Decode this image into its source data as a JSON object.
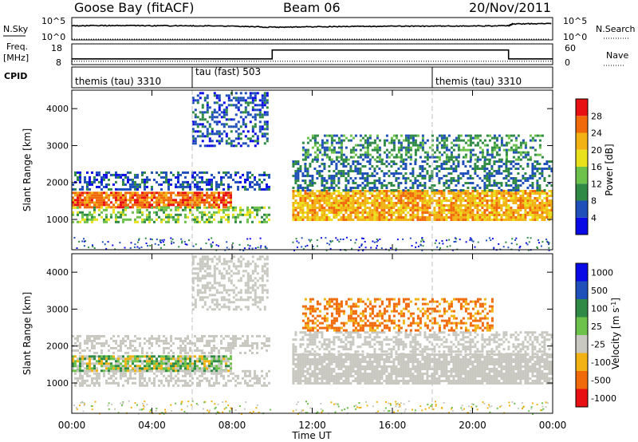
{
  "header": {
    "station": "Goose Bay (fitACF)",
    "beam": "Beam 06",
    "date": "20/Nov/2011"
  },
  "noise_panel": {
    "left_label": "N.Sky",
    "right_label": "N.Search",
    "tick_top": "10^5",
    "tick_bottom": "10^0",
    "rtick_top": "10^5",
    "rtick_bottom": "10^0"
  },
  "freq_panel": {
    "left_label_1": "Freq.",
    "left_label_2": "[MHz]",
    "right_label": "Nave",
    "left_ticks": [
      "18",
      "8"
    ],
    "right_ticks": [
      "60",
      "0"
    ]
  },
  "cpid_panel": {
    "label": "CPID",
    "modes": [
      {
        "name": "themis (tau) 3310",
        "start_hour": 0
      },
      {
        "name": "tau (fast) 503",
        "start_hour": 6
      },
      {
        "name": "themis (tau) 3310",
        "start_hour": 18
      }
    ]
  },
  "colors": {
    "power": [
      "#0a0ae6",
      "#1f4fb8",
      "#2f8a46",
      "#6cc24a",
      "#e8e11c",
      "#f2b213",
      "#f06a0c",
      "#e81010"
    ],
    "velocity": [
      "#0a0ae6",
      "#1f4fb8",
      "#2f8a46",
      "#6cc24a",
      "#c8c8c0",
      "#f2b213",
      "#f06a0c",
      "#e81010"
    ],
    "ground_scatter": "#c8c8c0"
  },
  "chart_data": [
    {
      "type": "line",
      "title": "Goose Bay (fitACF)  Beam 06  20/Nov/2011",
      "ylabel": "N.Sky",
      "y2label": "N.Search",
      "xlim_hours": [
        0,
        24
      ],
      "yscale": "log",
      "ylim": [
        1,
        100000
      ],
      "series": [
        {
          "name": "N.Sky",
          "x": [
            0,
            2,
            4,
            6,
            8,
            10,
            12,
            14,
            16,
            18,
            20,
            21.8,
            22,
            24
          ],
          "y": [
            1500,
            1800,
            1600,
            1500,
            1400,
            700,
            900,
            1100,
            1200,
            1300,
            1400,
            1600,
            4000,
            6000
          ]
        },
        {
          "name": "N.Search",
          "x": [
            0,
            4,
            8,
            12,
            16,
            20,
            24
          ],
          "y": [
            1,
            1,
            1,
            1,
            1,
            1,
            1
          ]
        }
      ]
    },
    {
      "type": "line",
      "ylabel": "Freq. [MHz]",
      "y2label": "Nave",
      "xlim_hours": [
        0,
        24
      ],
      "ylim": [
        8,
        18
      ],
      "y2lim": [
        0,
        60
      ],
      "series": [
        {
          "name": "Freq.",
          "x": [
            0,
            10,
            10,
            21.8,
            21.8,
            24
          ],
          "y": [
            10.6,
            10.6,
            15.2,
            15.2,
            10.6,
            10.6
          ]
        },
        {
          "name": "Nave",
          "x": [
            0,
            6,
            12,
            18,
            24
          ],
          "y": [
            8,
            8,
            8,
            8,
            8
          ]
        }
      ]
    },
    {
      "type": "heatmap",
      "quantity": "Power",
      "ylabel": "Slant Range [km]",
      "xlabel": "Time UT",
      "colorbar_label": "Power [dB]",
      "colorbar_ticks": [
        "4",
        "8",
        "12",
        "16",
        "20",
        "24",
        "28"
      ],
      "colorbar_range": [
        0,
        32
      ],
      "ylim": [
        180,
        4500
      ],
      "yticks": [
        "1000",
        "2000",
        "3000",
        "4000"
      ],
      "xticks": [
        "00:00",
        "04:00",
        "08:00",
        "12:00",
        "16:00",
        "20:00",
        "00:00"
      ],
      "xlim_hours": [
        0,
        24
      ],
      "features": [
        {
          "t0": 0.0,
          "t1": 8.0,
          "r0": 1300,
          "r1": 1750,
          "value": 26
        },
        {
          "t0": 0.0,
          "t1": 9.8,
          "r0": 950,
          "r1": 1350,
          "value": 14
        },
        {
          "t0": 0.0,
          "t1": 9.8,
          "r0": 1800,
          "r1": 2300,
          "value": 6
        },
        {
          "t0": 11.0,
          "t1": 24.0,
          "r0": 1000,
          "r1": 1800,
          "value": 22
        },
        {
          "t0": 11.0,
          "t1": 24.0,
          "r0": 1800,
          "r1": 2600,
          "value": 8
        },
        {
          "t0": 11.5,
          "t1": 23.5,
          "r0": 2600,
          "r1": 3300,
          "value": 10
        },
        {
          "t0": 6.0,
          "t1": 9.8,
          "r0": 3000,
          "r1": 4450,
          "value": 6
        }
      ]
    },
    {
      "type": "heatmap",
      "quantity": "Velocity",
      "ylabel": "Slant Range [km]",
      "xlabel": "Time UT",
      "colorbar_label": "Velocity [m s^-1]",
      "colorbar_ticks": [
        "1000",
        "500",
        "100",
        "25",
        "-25",
        "-100",
        "-500",
        "-1000"
      ],
      "ylim": [
        180,
        4500
      ],
      "yticks": [
        "1000",
        "2000",
        "3000",
        "4000"
      ],
      "xticks": [
        "00:00",
        "04:00",
        "08:00",
        "12:00",
        "16:00",
        "20:00",
        "00:00"
      ],
      "xlim_hours": [
        0,
        24
      ],
      "features": [
        {
          "t0": 0.0,
          "t1": 8.0,
          "r0": 1300,
          "r1": 1750,
          "value": 60
        },
        {
          "t0": 0.0,
          "t1": 9.8,
          "r0": 950,
          "r1": 1350,
          "value": 0
        },
        {
          "t0": 0.0,
          "t1": 9.8,
          "r0": 1800,
          "r1": 2300,
          "value": 0
        },
        {
          "t0": 11.0,
          "t1": 24.0,
          "r0": 1000,
          "r1": 1800,
          "value": 0
        },
        {
          "t0": 11.0,
          "t1": 24.0,
          "r0": 1800,
          "r1": 2400,
          "value": 0
        },
        {
          "t0": 11.5,
          "t1": 21.0,
          "r0": 2400,
          "r1": 3300,
          "value": -150
        },
        {
          "t0": 6.0,
          "t1": 9.8,
          "r0": 3000,
          "r1": 4450,
          "value": 0
        }
      ]
    }
  ]
}
